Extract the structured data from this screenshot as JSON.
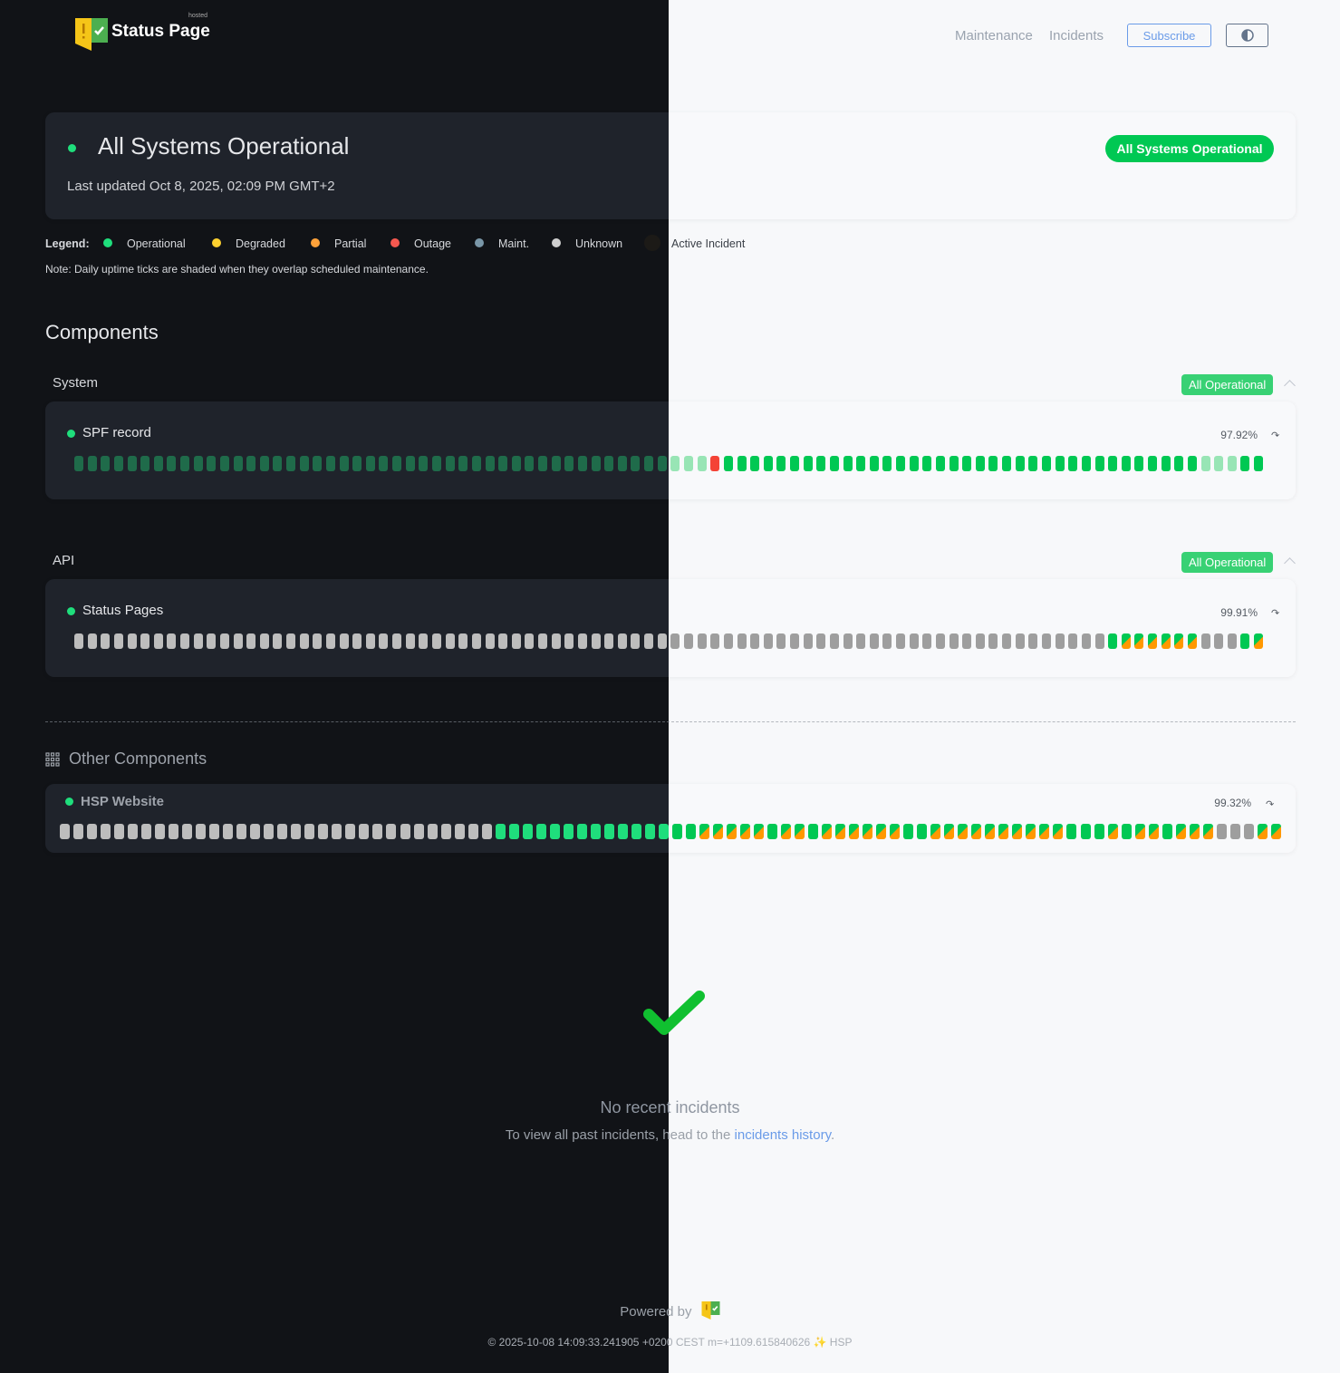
{
  "brand": {
    "name": "Status Page",
    "tag": "hosted"
  },
  "nav": {
    "maintenance": "Maintenance",
    "incidents": "Incidents",
    "subscribe": "Subscribe",
    "theme_toggle_icon": "contrast-icon"
  },
  "overall": {
    "title": "All Systems Operational",
    "updated": "Last updated Oct 8, 2025, 02:09 PM GMT+2",
    "badge": "All Systems Operational"
  },
  "legend": {
    "label": "Legend:",
    "items": [
      {
        "label": "Operational",
        "color": "#1fde7c"
      },
      {
        "label": "Degraded",
        "color": "#fdd02f"
      },
      {
        "label": "Partial",
        "color": "#ffa23a"
      },
      {
        "label": "Outage",
        "color": "#f5584f"
      },
      {
        "label": "Maint.",
        "color": "#7a97a8"
      },
      {
        "label": "Unknown",
        "color": "#cfcfcf"
      },
      {
        "label": "Active Incident",
        "color": "#1c1a17"
      }
    ],
    "note": "Note: Daily uptime ticks are shaded when they overlap scheduled maintenance."
  },
  "components_heading": "Components",
  "groups": [
    {
      "name": "System",
      "badge": "All Operational",
      "component": {
        "name": "SPF record",
        "uptime": "97.92%",
        "ticks": [
          "shaded",
          "shaded",
          "shaded",
          "shaded",
          "shaded",
          "shaded",
          "shaded",
          "shaded",
          "shaded",
          "shaded",
          "shaded",
          "shaded",
          "shaded",
          "shaded",
          "shaded",
          "shaded",
          "shaded",
          "shaded",
          "shaded",
          "shaded",
          "shaded",
          "shaded",
          "shaded",
          "shaded",
          "shaded",
          "shaded",
          "shaded",
          "shaded",
          "shaded",
          "shaded",
          "shaded",
          "shaded",
          "shaded",
          "shaded",
          "shaded",
          "shaded",
          "shaded",
          "shaded",
          "shaded",
          "shaded",
          "shaded",
          "shaded",
          "shaded",
          "shaded",
          "shaded",
          "shaded",
          "shaded",
          "shaded",
          "outage",
          "operational",
          "operational",
          "operational",
          "operational",
          "operational",
          "operational",
          "operational",
          "operational",
          "operational",
          "operational",
          "operational",
          "operational",
          "operational",
          "operational",
          "operational",
          "operational",
          "operational",
          "operational",
          "operational",
          "operational",
          "operational",
          "operational",
          "operational",
          "operational",
          "operational",
          "operational",
          "operational",
          "operational",
          "operational",
          "operational",
          "operational",
          "operational",
          "operational",
          "operational",
          "operational",
          "operational",
          "shaded",
          "shaded",
          "shaded",
          "operational",
          "operational"
        ]
      }
    },
    {
      "name": "API",
      "badge": "All Operational",
      "component": {
        "name": "Status Pages",
        "uptime": "99.91%",
        "ticks": [
          "unknown",
          "unknown",
          "unknown",
          "unknown",
          "unknown",
          "unknown",
          "unknown",
          "unknown",
          "unknown",
          "unknown",
          "unknown",
          "unknown",
          "unknown",
          "unknown",
          "unknown",
          "unknown",
          "unknown",
          "unknown",
          "unknown",
          "unknown",
          "unknown",
          "unknown",
          "unknown",
          "unknown",
          "unknown",
          "unknown",
          "unknown",
          "unknown",
          "unknown",
          "unknown",
          "unknown",
          "unknown",
          "unknown",
          "unknown",
          "unknown",
          "unknown",
          "unknown",
          "unknown",
          "unknown",
          "unknown",
          "unknown",
          "unknown",
          "unknown",
          "unknown",
          "unknown",
          "unknown",
          "unknown",
          "unknown",
          "unknown",
          "unknown",
          "unknown",
          "unknown",
          "unknown",
          "unknown",
          "unknown",
          "unknown",
          "unknown",
          "unknown",
          "unknown",
          "unknown",
          "unknown",
          "unknown",
          "unknown",
          "unknown",
          "unknown",
          "unknown",
          "unknown",
          "unknown",
          "unknown",
          "unknown",
          "unknown",
          "unknown",
          "unknown",
          "unknown",
          "unknown",
          "unknown",
          "unknown",
          "unknown",
          "operational",
          "partial",
          "partial",
          "partial",
          "partial",
          "partial",
          "partial",
          "unknown",
          "unknown",
          "unknown",
          "operational",
          "partial"
        ]
      }
    }
  ],
  "other": {
    "heading": "Other Components",
    "component": {
      "name": "HSP Website",
      "uptime": "99.32%",
      "ticks": [
        "unknown",
        "unknown",
        "unknown",
        "unknown",
        "unknown",
        "unknown",
        "unknown",
        "unknown",
        "unknown",
        "unknown",
        "unknown",
        "unknown",
        "unknown",
        "unknown",
        "unknown",
        "unknown",
        "unknown",
        "unknown",
        "unknown",
        "unknown",
        "unknown",
        "unknown",
        "unknown",
        "unknown",
        "unknown",
        "unknown",
        "unknown",
        "unknown",
        "unknown",
        "unknown",
        "unknown",
        "unknown",
        "operational",
        "operational",
        "operational",
        "operational",
        "operational",
        "operational",
        "operational",
        "operational",
        "operational",
        "operational",
        "operational",
        "operational",
        "operational",
        "operational",
        "operational",
        "partial",
        "partial",
        "partial",
        "partial",
        "partial",
        "operational",
        "partial",
        "partial",
        "operational",
        "partial",
        "partial",
        "partial",
        "partial",
        "partial",
        "partial",
        "operational",
        "operational",
        "partial",
        "partial",
        "partial",
        "partial",
        "partial",
        "partial",
        "partial",
        "partial",
        "partial",
        "partial",
        "operational",
        "operational",
        "operational",
        "partial",
        "operational",
        "partial",
        "partial",
        "operational",
        "partial",
        "partial",
        "partial",
        "unknown",
        "unknown",
        "unknown",
        "partial",
        "partial"
      ]
    }
  },
  "incidents": {
    "title": "No recent incidents",
    "text": "To view all past incidents, head to the ",
    "link": "incidents history",
    "end": "."
  },
  "footer": {
    "powered": "Powered by",
    "stamp": "© 2025-10-08 14:09:33.241905 +0200 CEST m=+1109.615840626 ✨ HSP"
  }
}
